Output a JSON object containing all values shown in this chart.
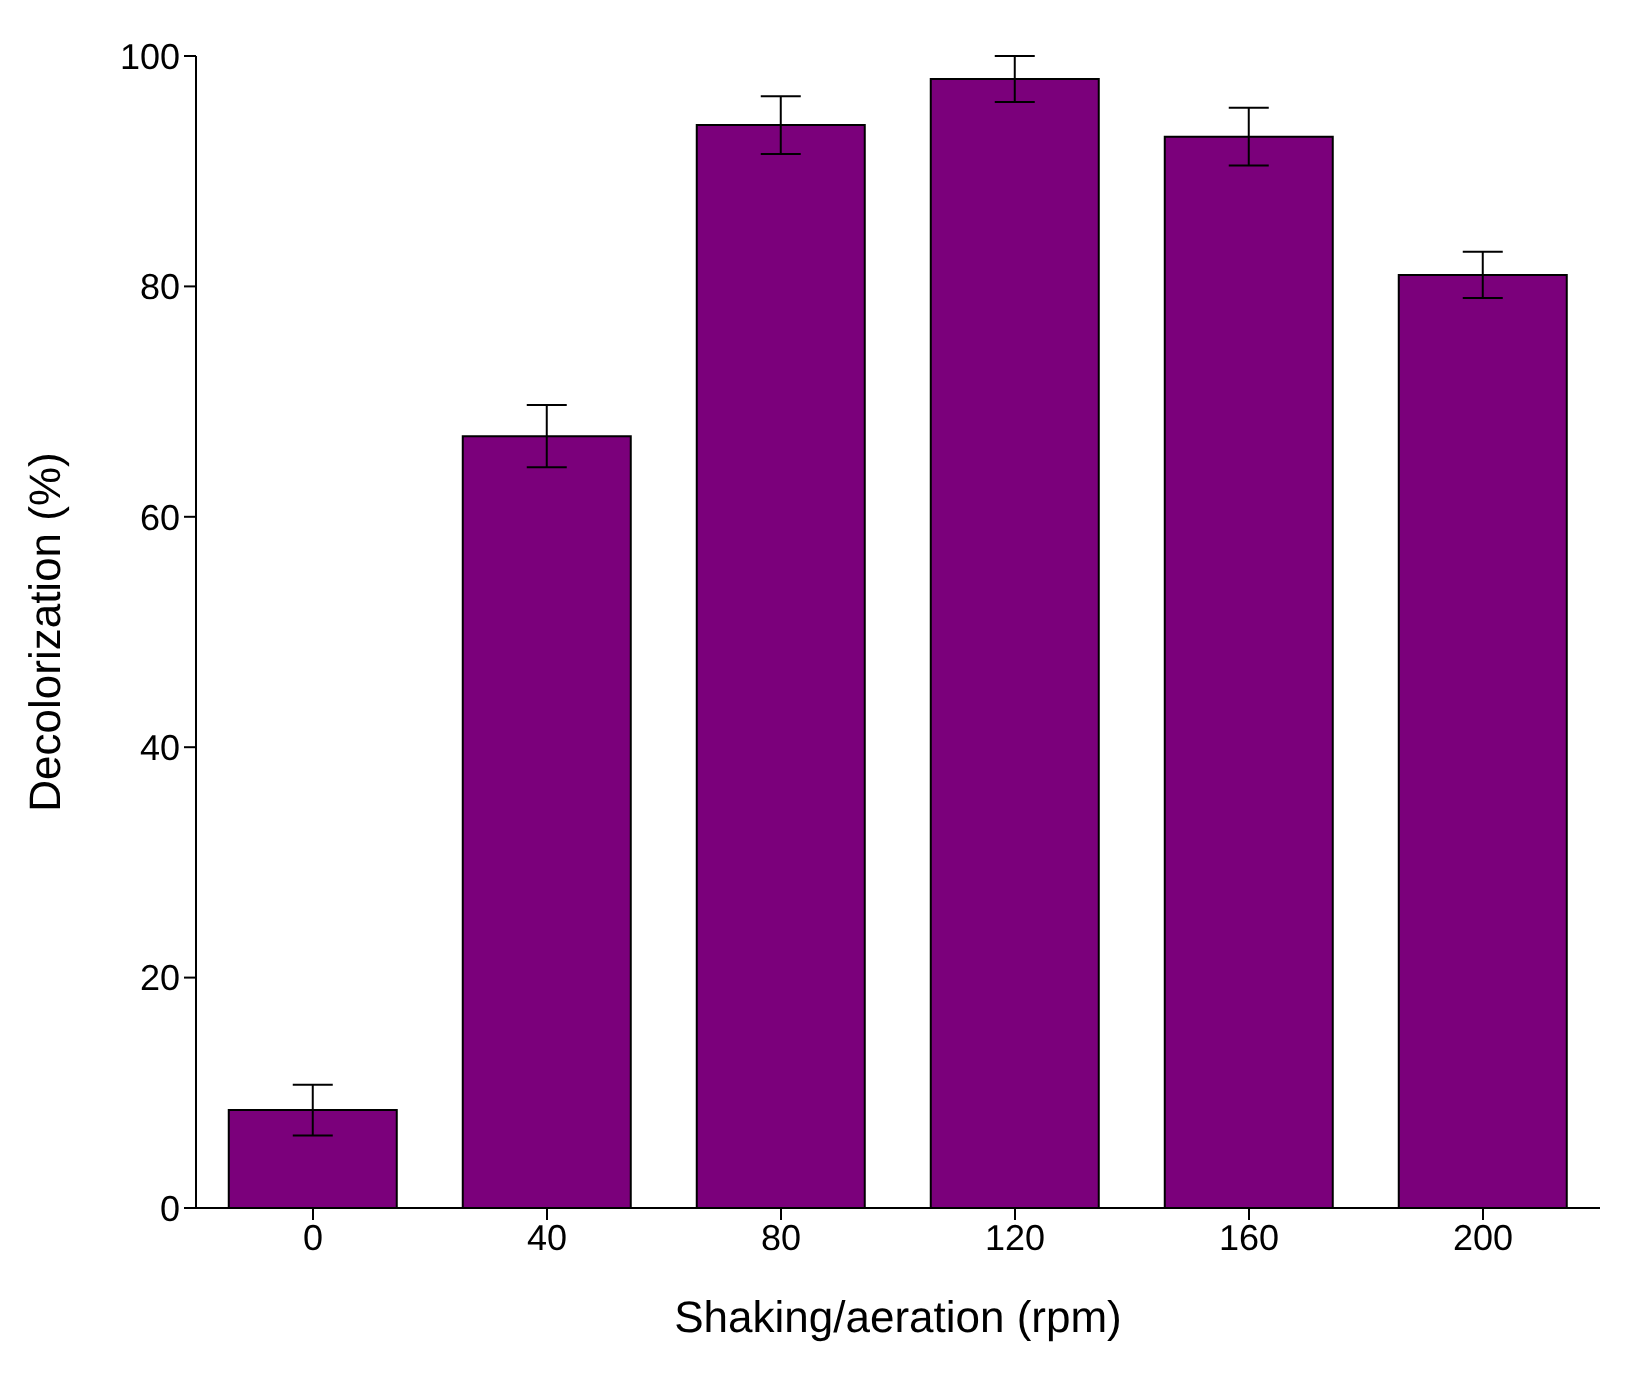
{
  "chart_data": {
    "type": "bar",
    "xlabel": "Shaking/aeration (rpm)",
    "ylabel": "Decolorization (%)",
    "categories": [
      "0",
      "40",
      "80",
      "120",
      "160",
      "200"
    ],
    "values": [
      8.5,
      67,
      94,
      98,
      93,
      81
    ],
    "errors": [
      2.2,
      2.7,
      2.5,
      2,
      2.5,
      2
    ],
    "color": "#7b007b",
    "ylim": [
      0,
      100
    ],
    "yticks": [
      0,
      20,
      40,
      60,
      80,
      100
    ],
    "grid": false,
    "legend": false
  }
}
